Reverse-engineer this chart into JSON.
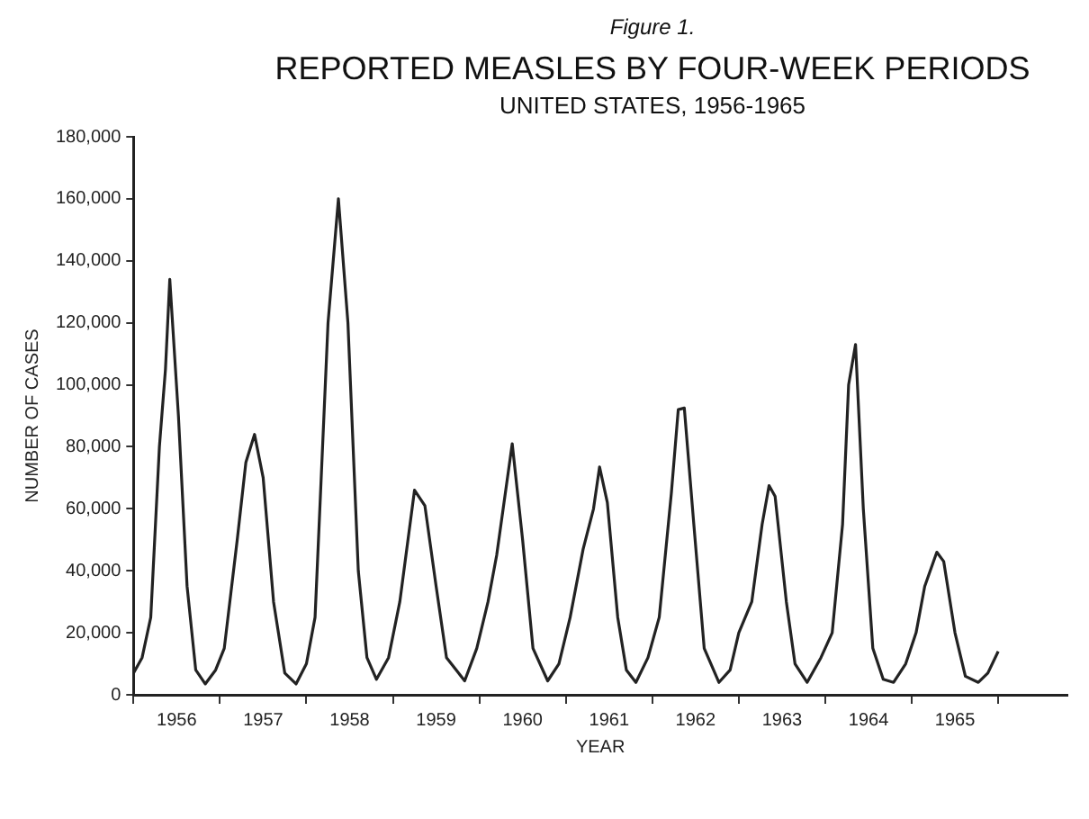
{
  "chart_data": {
    "type": "line",
    "title": "REPORTED MEASLES BY FOUR-WEEK PERIODS",
    "subtitle": "UNITED STATES, 1956-1965",
    "annotations": [
      "Figure 1."
    ],
    "xlabel": "YEAR",
    "ylabel": "NUMBER OF CASES",
    "grid": false,
    "marker": "none",
    "line_style": "solid",
    "xlim": [
      1956,
      1966.8
    ],
    "xticks": [
      {
        "value": 1956,
        "label": null
      },
      {
        "value": 1956.5,
        "label": "1956"
      },
      {
        "value": 1957,
        "label": null
      },
      {
        "value": 1957.5,
        "label": "1957"
      },
      {
        "value": 1958,
        "label": null
      },
      {
        "value": 1958.5,
        "label": "1958"
      },
      {
        "value": 1959,
        "label": null
      },
      {
        "value": 1959.5,
        "label": "1959"
      },
      {
        "value": 1960,
        "label": null
      },
      {
        "value": 1960.5,
        "label": "1960"
      },
      {
        "value": 1961,
        "label": null
      },
      {
        "value": 1961.5,
        "label": "1961"
      },
      {
        "value": 1962,
        "label": null
      },
      {
        "value": 1962.5,
        "label": "1962"
      },
      {
        "value": 1963,
        "label": null
      },
      {
        "value": 1963.5,
        "label": "1963"
      },
      {
        "value": 1964,
        "label": null
      },
      {
        "value": 1964.5,
        "label": "1964"
      },
      {
        "value": 1965,
        "label": null
      },
      {
        "value": 1965.5,
        "label": "1965"
      },
      {
        "value": 1966,
        "label": null
      }
    ],
    "ylim": [
      0,
      180000
    ],
    "yticks": [
      {
        "value": 0,
        "label": "0"
      },
      {
        "value": 20000,
        "label": "20,000"
      },
      {
        "value": 40000,
        "label": "40,000"
      },
      {
        "value": 60000,
        "label": "60,000"
      },
      {
        "value": 80000,
        "label": "80,000"
      },
      {
        "value": 100000,
        "label": "100,000"
      },
      {
        "value": 120000,
        "label": "120,000"
      },
      {
        "value": 140000,
        "label": "140,000"
      },
      {
        "value": 160000,
        "label": "160,000"
      },
      {
        "value": 180000,
        "label": "180,000"
      }
    ],
    "series": [
      {
        "color": "#222222",
        "x": [
          1956.0,
          1956.1,
          1956.2,
          1956.3,
          1956.37,
          1956.42,
          1956.52,
          1956.62,
          1956.72,
          1956.83,
          1956.95,
          1957.05,
          1957.2,
          1957.3,
          1957.4,
          1957.5,
          1957.62,
          1957.75,
          1957.88,
          1958.0,
          1958.1,
          1958.25,
          1958.37,
          1958.48,
          1958.6,
          1958.7,
          1958.81,
          1958.95,
          1959.08,
          1959.25,
          1959.37,
          1959.5,
          1959.62,
          1959.83,
          1959.97,
          1960.1,
          1960.2,
          1960.38,
          1960.5,
          1960.62,
          1960.79,
          1960.92,
          1961.05,
          1961.2,
          1961.32,
          1961.39,
          1961.48,
          1961.6,
          1961.7,
          1961.81,
          1961.95,
          1962.08,
          1962.22,
          1962.3,
          1962.37,
          1962.48,
          1962.6,
          1962.77,
          1962.9,
          1963.0,
          1963.15,
          1963.27,
          1963.35,
          1963.42,
          1963.55,
          1963.65,
          1963.79,
          1963.95,
          1964.08,
          1964.2,
          1964.27,
          1964.35,
          1964.44,
          1964.55,
          1964.67,
          1964.79,
          1964.93,
          1965.05,
          1965.15,
          1965.29,
          1965.37,
          1965.5,
          1965.62,
          1965.77,
          1965.88,
          1966.0
        ],
        "values": [
          7000,
          12000,
          25000,
          80000,
          105000,
          134000,
          90000,
          35000,
          8000,
          3500,
          8000,
          15000,
          50000,
          75000,
          84000,
          70000,
          30000,
          7000,
          3500,
          10000,
          25000,
          120000,
          160000,
          120000,
          40000,
          12000,
          5000,
          12000,
          30000,
          66000,
          61000,
          35000,
          12000,
          4500,
          15000,
          30000,
          45000,
          81000,
          50000,
          15000,
          4500,
          10000,
          25000,
          47000,
          60000,
          73500,
          62000,
          25000,
          8000,
          4000,
          12000,
          25000,
          65000,
          92000,
          92500,
          55000,
          15000,
          4000,
          8000,
          20000,
          30000,
          55000,
          67500,
          64000,
          30000,
          10000,
          4000,
          12000,
          20000,
          55000,
          100000,
          113000,
          60000,
          15000,
          5000,
          4000,
          10000,
          20000,
          35000,
          46000,
          43000,
          20000,
          6000,
          4000,
          7000,
          14000
        ]
      }
    ]
  }
}
